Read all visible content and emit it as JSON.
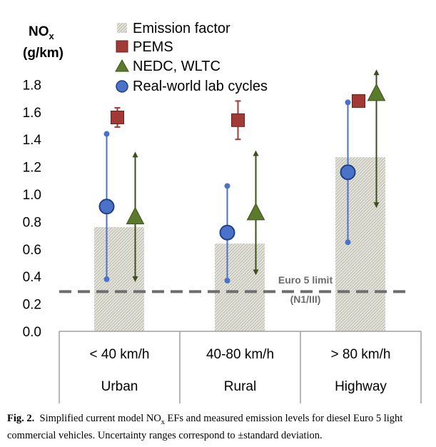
{
  "chart_data": {
    "type": "bar",
    "title": "",
    "ylabel_line1_main": "NO",
    "ylabel_line1_sub": "x",
    "ylabel_line2": "(g/km)",
    "ylim": [
      0,
      2.0
    ],
    "yticks": [
      "0.0",
      "0.2",
      "0.4",
      "0.6",
      "0.8",
      "1.0",
      "1.2",
      "1.4",
      "1.6",
      "1.8"
    ],
    "categories": [
      {
        "speed": "< 40 km/h",
        "area": "Urban"
      },
      {
        "speed": "40-80 km/h",
        "area": "Rural"
      },
      {
        "speed": "> 80 km/h",
        "area": "Highway"
      }
    ],
    "legend": {
      "emission_factor": "Emission factor",
      "pems": "PEMS",
      "nedc_wltc": "NEDC, WLTC",
      "real_world": "Real-world lab cycles"
    },
    "series": [
      {
        "name": "Emission factor",
        "kind": "bar",
        "values": [
          0.76,
          0.64,
          1.27
        ]
      },
      {
        "name": "PEMS",
        "kind": "square",
        "values": [
          1.56,
          1.54,
          1.68
        ],
        "low": [
          1.49,
          1.4,
          null
        ],
        "high": [
          1.63,
          1.68,
          null
        ]
      },
      {
        "name": "NEDC, WLTC",
        "kind": "triangle",
        "values": [
          0.83,
          0.86,
          1.73
        ],
        "low": [
          0.37,
          0.42,
          0.91
        ],
        "high": [
          1.3,
          1.31,
          1.9
        ]
      },
      {
        "name": "Real-world lab cycles",
        "kind": "circle",
        "values": [
          0.91,
          0.72,
          1.16
        ],
        "low": [
          0.38,
          0.37,
          0.65
        ],
        "high": [
          1.44,
          1.06,
          1.67
        ]
      }
    ],
    "reference_line": {
      "value": 0.29,
      "label_line1": "Euro 5 limit",
      "label_line2": "(N1/III)"
    },
    "colors": {
      "bar_stripe": "#a9a99a",
      "pems": "#a13a35",
      "nedc": "#5b7b2c",
      "nedc_line": "#3d4f1a",
      "circle": "#4a72c9",
      "circle_line": "#1f3f8a",
      "limit": "#6e6e6e",
      "axis": "#a0a0a0"
    }
  },
  "caption": {
    "fig_label": "Fig. 2.",
    "text_a": "Simplified current model NO",
    "text_sub": "x",
    "text_b": " EFs and measured emission levels for diesel Euro 5 light commercial vehicles. Uncertainty ranges correspond to ±standard deviation."
  }
}
